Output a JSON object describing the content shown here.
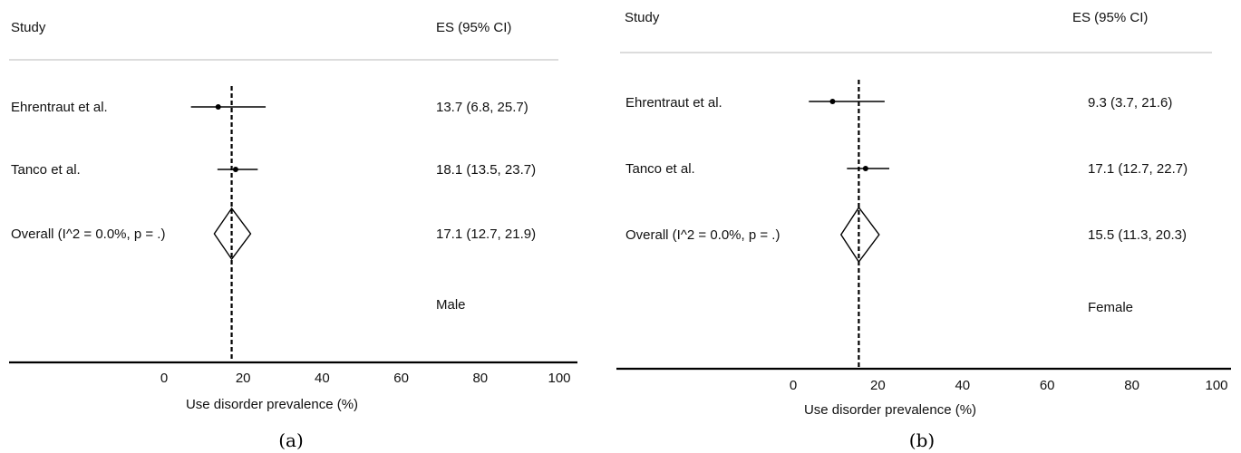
{
  "chart_data": [
    {
      "type": "forest",
      "panel_label": "(a)",
      "header_study": "Study",
      "header_es": "ES (95% CI)",
      "xlabel": "Use disorder prevalence (%)",
      "xticks": [
        "0",
        "20",
        "40",
        "60",
        "80",
        "100"
      ],
      "tick_values": [
        0,
        20,
        40,
        60,
        80,
        100
      ],
      "subgroup_label": "Male",
      "null_line": 17.1,
      "studies": [
        {
          "label": "Ehrentraut et al.",
          "es": 13.7,
          "lo": 6.8,
          "hi": 25.7,
          "es_text": "13.7 (6.8, 25.7)"
        },
        {
          "label": "Tanco et al.",
          "es": 18.1,
          "lo": 13.5,
          "hi": 23.7,
          "es_text": "18.1 (13.5, 23.7)"
        }
      ],
      "overall": {
        "label": "Overall  (I^2 = 0.0%, p = .)",
        "es": 17.1,
        "lo": 12.7,
        "hi": 21.9,
        "es_text": "17.1 (12.7, 21.9)"
      }
    },
    {
      "type": "forest",
      "panel_label": "(b)",
      "header_study": "Study",
      "header_es": "ES (95% CI)",
      "xlabel": "Use disorder prevalence (%)",
      "xticks": [
        "0",
        "20",
        "40",
        "60",
        "80",
        "100"
      ],
      "tick_values": [
        0,
        20,
        40,
        60,
        80,
        100
      ],
      "subgroup_label": "Female",
      "null_line": 15.5,
      "studies": [
        {
          "label": "Ehrentraut et al.",
          "es": 9.3,
          "lo": 3.7,
          "hi": 21.6,
          "es_text": "9.3 (3.7, 21.6)"
        },
        {
          "label": "Tanco et al.",
          "es": 17.1,
          "lo": 12.7,
          "hi": 22.7,
          "es_text": "17.1 (12.7, 22.7)"
        }
      ],
      "overall": {
        "label": "Overall  (I^2 = 0.0%, p = .)",
        "es": 15.5,
        "lo": 11.3,
        "hi": 20.3,
        "es_text": "15.5 (11.3, 20.3)"
      }
    }
  ]
}
